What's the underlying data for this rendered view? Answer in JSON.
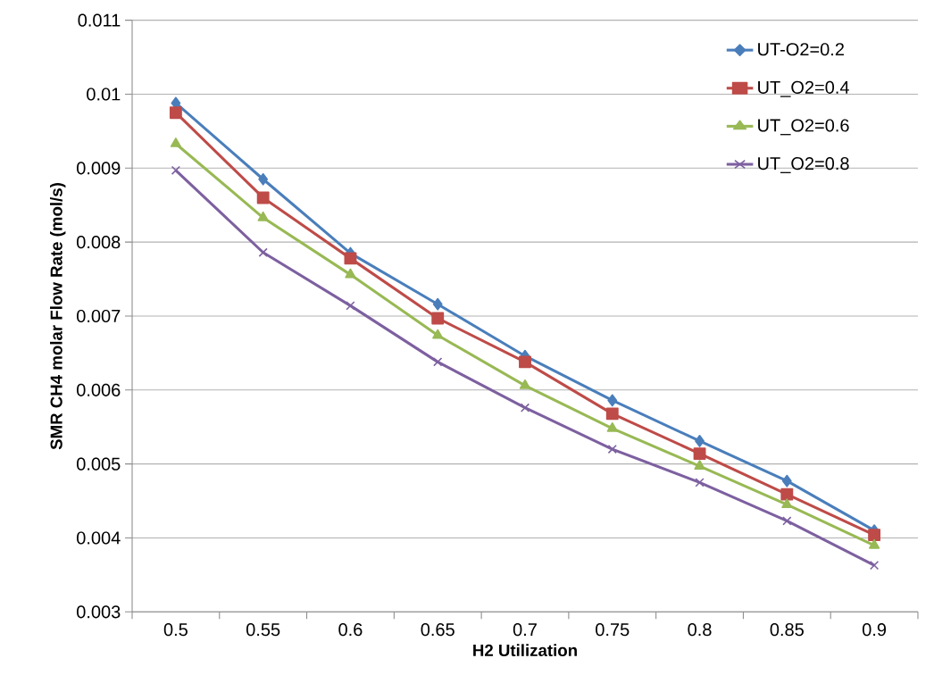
{
  "chart_data": {
    "type": "line",
    "xlabel": "H2 Utilization",
    "ylabel": "SMR CH4 molar Flow Rate (mol/s)",
    "categories": [
      "0.5",
      "0.55",
      "0.6",
      "0.65",
      "0.7",
      "0.75",
      "0.8",
      "0.85",
      "0.9"
    ],
    "series": [
      {
        "name": "UT-O2=0.2",
        "color": "#4a7ebb",
        "marker": "diamond",
        "values": [
          0.00988,
          0.00885,
          0.00785,
          0.00716,
          0.00646,
          0.00586,
          0.00531,
          0.00477,
          0.0041
        ]
      },
      {
        "name": "UT_O2=0.4",
        "color": "#be4b48",
        "marker": "square",
        "values": [
          0.00975,
          0.0086,
          0.00778,
          0.00697,
          0.00638,
          0.00568,
          0.00514,
          0.00459,
          0.00404
        ]
      },
      {
        "name": "UT_O2=0.6",
        "color": "#98b954",
        "marker": "triangle",
        "values": [
          0.00933,
          0.00833,
          0.00756,
          0.00674,
          0.00606,
          0.00548,
          0.00497,
          0.00445,
          0.0039
        ]
      },
      {
        "name": "UT_O2=0.8",
        "color": "#7d60a0",
        "marker": "cross",
        "values": [
          0.00897,
          0.00786,
          0.00714,
          0.00638,
          0.00576,
          0.0052,
          0.00475,
          0.00423,
          0.00363
        ]
      }
    ],
    "ylim": [
      0.003,
      0.011
    ],
    "yticks": [
      0.003,
      0.004,
      0.005,
      0.006,
      0.007,
      0.008,
      0.009,
      0.01,
      0.011
    ],
    "grid": "y",
    "legend": "top right",
    "line_style": "solid"
  }
}
